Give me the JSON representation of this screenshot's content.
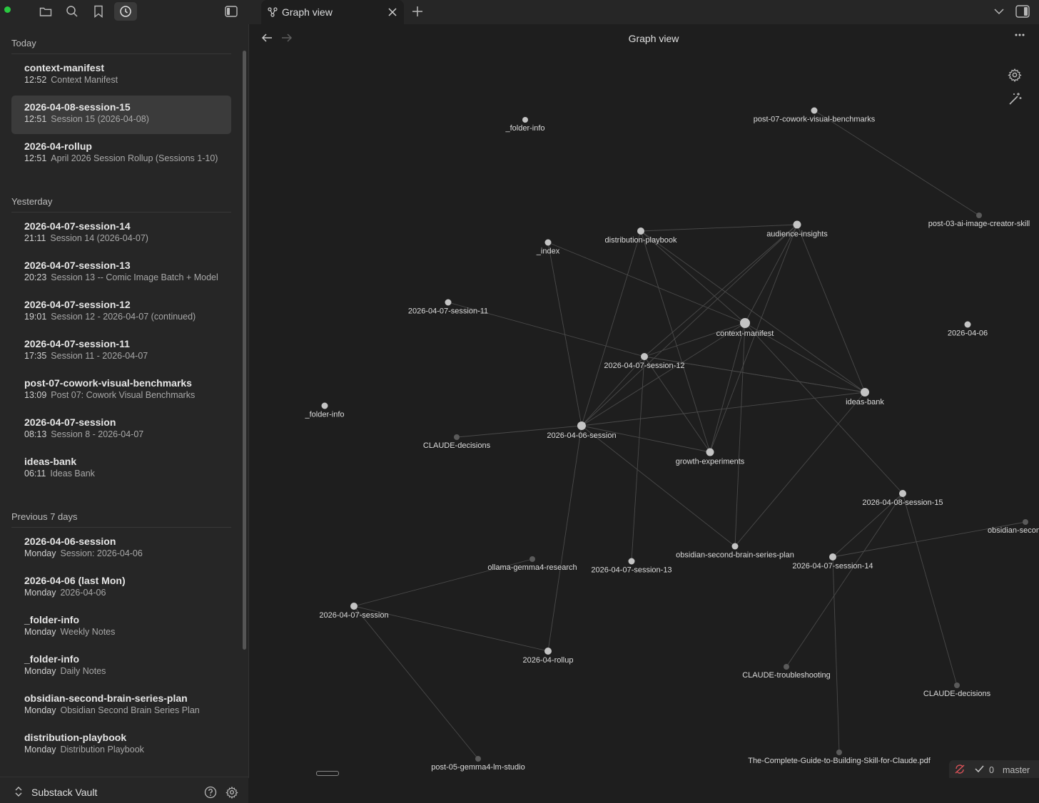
{
  "tab": {
    "label": "Graph view"
  },
  "view": {
    "title": "Graph view"
  },
  "sidebar": {
    "sections": [
      {
        "heading": "Today",
        "items": [
          {
            "title": "context-manifest",
            "time": "12:52",
            "desc": "Context Manifest"
          },
          {
            "title": "2026-04-08-session-15",
            "time": "12:51",
            "desc": "Session 15 (2026-04-08)"
          },
          {
            "title": "2026-04-rollup",
            "time": "12:51",
            "desc": "April 2026 Session Rollup (Sessions 1-10)"
          }
        ]
      },
      {
        "heading": "Yesterday",
        "items": [
          {
            "title": "2026-04-07-session-14",
            "time": "21:11",
            "desc": "Session 14 (2026-04-07)"
          },
          {
            "title": "2026-04-07-session-13",
            "time": "20:23",
            "desc": "Session 13 -- Comic Image Batch + Model"
          },
          {
            "title": "2026-04-07-session-12",
            "time": "19:01",
            "desc": "Session 12 - 2026-04-07 (continued)"
          },
          {
            "title": "2026-04-07-session-11",
            "time": "17:35",
            "desc": "Session 11 - 2026-04-07"
          },
          {
            "title": "post-07-cowork-visual-benchmarks",
            "time": "13:09",
            "desc": "Post 07: Cowork Visual Benchmarks"
          },
          {
            "title": "2026-04-07-session",
            "time": "08:13",
            "desc": "Session 8 - 2026-04-07"
          },
          {
            "title": "ideas-bank",
            "time": "06:11",
            "desc": "Ideas Bank"
          }
        ]
      },
      {
        "heading": "Previous 7 days",
        "items": [
          {
            "title": "2026-04-06-session",
            "time": "Monday",
            "desc": "Session: 2026-04-06"
          },
          {
            "title": "2026-04-06 (last Mon)",
            "time": "Monday",
            "desc": "2026-04-06"
          },
          {
            "title": "_folder-info",
            "time": "Monday",
            "desc": "Weekly Notes"
          },
          {
            "title": "_folder-info",
            "time": "Monday",
            "desc": "Daily Notes"
          },
          {
            "title": "obsidian-second-brain-series-plan",
            "time": "Monday",
            "desc": "Obsidian Second Brain Series Plan"
          },
          {
            "title": "distribution-playbook",
            "time": "Monday",
            "desc": "Distribution Playbook"
          }
        ]
      }
    ],
    "vault_name": "Substack Vault"
  },
  "status": {
    "count": "0",
    "branch": "master"
  },
  "graph": {
    "nodes": [
      {
        "id": "folder-info-a",
        "label": "_folder-info",
        "tone": "light"
      },
      {
        "id": "post07",
        "label": "post-07-cowork-visual-benchmarks",
        "tone": "light"
      },
      {
        "id": "post03",
        "label": "post-03-ai-image-creator-skill",
        "tone": "dim"
      },
      {
        "id": "distribution",
        "label": "distribution-playbook",
        "tone": "light"
      },
      {
        "id": "audience",
        "label": "audience-insights",
        "tone": "light"
      },
      {
        "id": "index",
        "label": "_index",
        "tone": "light"
      },
      {
        "id": "s11",
        "label": "2026-04-07-session-11",
        "tone": "light"
      },
      {
        "id": "ctx",
        "label": "context-manifest",
        "tone": "light"
      },
      {
        "id": "d0406",
        "label": "2026-04-06",
        "tone": "light"
      },
      {
        "id": "s12",
        "label": "2026-04-07-session-12",
        "tone": "light"
      },
      {
        "id": "folder-info-b",
        "label": "_folder-info",
        "tone": "light"
      },
      {
        "id": "ideas",
        "label": "ideas-bank",
        "tone": "light"
      },
      {
        "id": "claude-dec-a",
        "label": "CLAUDE-decisions",
        "tone": "dim"
      },
      {
        "id": "s0406",
        "label": "2026-04-06-session",
        "tone": "light"
      },
      {
        "id": "growth",
        "label": "growth-experiments",
        "tone": "light"
      },
      {
        "id": "s15",
        "label": "2026-04-08-session-15",
        "tone": "light"
      },
      {
        "id": "obs-second",
        "label": "obsidian-secon",
        "tone": "dim"
      },
      {
        "id": "ollama",
        "label": "ollama-gemma4-research",
        "tone": "dim"
      },
      {
        "id": "s13",
        "label": "2026-04-07-session-13",
        "tone": "light"
      },
      {
        "id": "obs-plan",
        "label": "obsidian-second-brain-series-plan",
        "tone": "light"
      },
      {
        "id": "s14",
        "label": "2026-04-07-session-14",
        "tone": "light"
      },
      {
        "id": "s0407",
        "label": "2026-04-07-session",
        "tone": "light"
      },
      {
        "id": "rollup",
        "label": "2026-04-rollup",
        "tone": "light"
      },
      {
        "id": "claude-trouble",
        "label": "CLAUDE-troubleshooting",
        "tone": "dim"
      },
      {
        "id": "claude-dec-b",
        "label": "CLAUDE-decisions",
        "tone": "dim"
      },
      {
        "id": "post05",
        "label": "post-05-gemma4-lm-studio",
        "tone": "dim"
      },
      {
        "id": "guide",
        "label": "The-Complete-Guide-to-Building-Skill-for-Claude.pdf",
        "tone": "dim"
      }
    ],
    "edges": [
      [
        "post07",
        "post03"
      ],
      [
        "distribution",
        "audience"
      ],
      [
        "distribution",
        "ctx"
      ],
      [
        "distribution",
        "ideas"
      ],
      [
        "distribution",
        "s0406"
      ],
      [
        "distribution",
        "growth"
      ],
      [
        "audience",
        "ctx"
      ],
      [
        "audience",
        "ideas"
      ],
      [
        "audience",
        "s12"
      ],
      [
        "audience",
        "growth"
      ],
      [
        "audience",
        "s0406"
      ],
      [
        "index",
        "ctx"
      ],
      [
        "index",
        "s0406"
      ],
      [
        "s11",
        "s12"
      ],
      [
        "ctx",
        "s12"
      ],
      [
        "ctx",
        "s0406"
      ],
      [
        "ctx",
        "growth"
      ],
      [
        "ctx",
        "ideas"
      ],
      [
        "ctx",
        "obs-plan"
      ],
      [
        "ctx",
        "s15"
      ],
      [
        "s12",
        "ideas"
      ],
      [
        "s12",
        "s0406"
      ],
      [
        "s12",
        "growth"
      ],
      [
        "s12",
        "s13"
      ],
      [
        "s12",
        "ideas"
      ],
      [
        "s0406",
        "ideas"
      ],
      [
        "s0406",
        "growth"
      ],
      [
        "s0406",
        "claude-dec-a"
      ],
      [
        "s0406",
        "obs-plan"
      ],
      [
        "s0406",
        "rollup"
      ],
      [
        "ideas",
        "obs-plan"
      ],
      [
        "s15",
        "s14"
      ],
      [
        "s15",
        "claude-trouble"
      ],
      [
        "s15",
        "claude-dec-b"
      ],
      [
        "s14",
        "obs-second"
      ],
      [
        "s14",
        "guide"
      ],
      [
        "s0407",
        "ollama"
      ],
      [
        "s0407",
        "rollup"
      ],
      [
        "s0407",
        "post05"
      ]
    ]
  }
}
